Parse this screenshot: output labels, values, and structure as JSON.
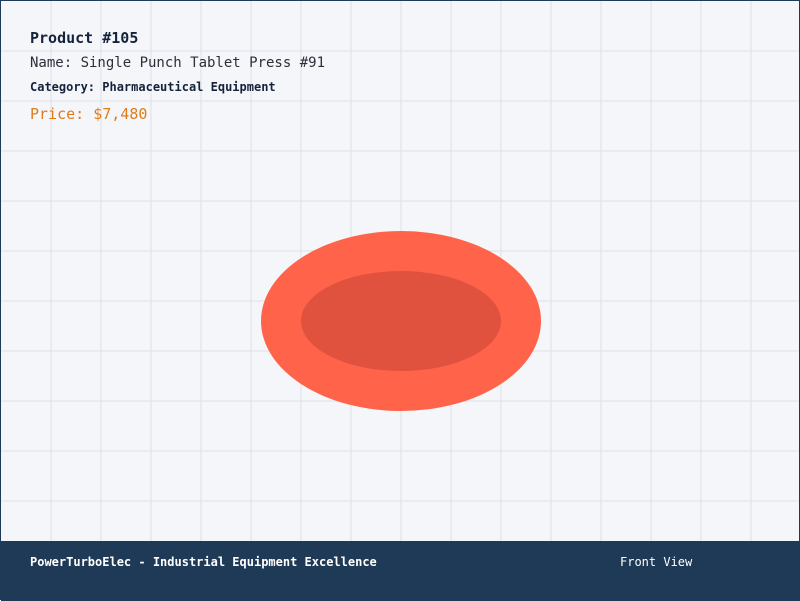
{
  "product": {
    "title": "Product #105",
    "name": "Name: Single Punch Tablet Press #91",
    "category": "Category: Pharmaceutical Equipment",
    "price": "Price: $7,480"
  },
  "footer": {
    "brand": "PowerTurboElec - Industrial Equipment Excellence",
    "view": "Front View"
  }
}
